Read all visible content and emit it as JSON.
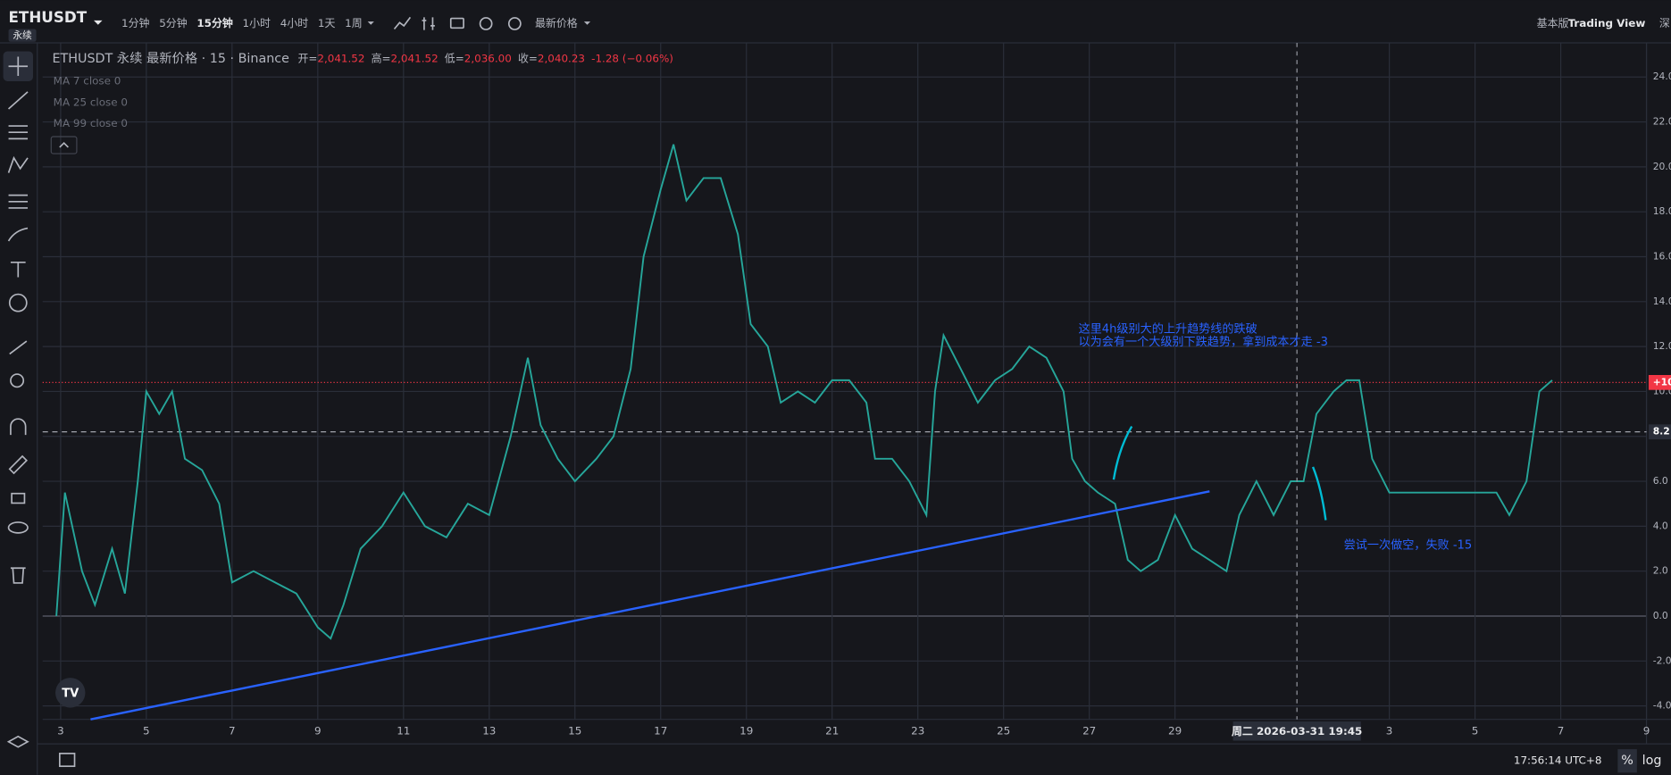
{
  "header": {
    "symbol": "ETHUSDT",
    "contract": "永续",
    "intervals": [
      "1分钟",
      "5分钟",
      "15分钟",
      "1小时",
      "4小时",
      "1天",
      "1周"
    ],
    "price_type": "最新价格",
    "right_links": [
      "基本版",
      "Trading View",
      "深"
    ]
  },
  "legend": {
    "title": "ETHUSDT 永续 最新价格 · 15 · Binance",
    "fields": [
      {
        "label": "开=",
        "value": "2,041.52"
      },
      {
        "label": "高=",
        "value": "2,041.52"
      },
      {
        "label": "低=",
        "value": "2,036.00"
      },
      {
        "label": "收=",
        "value": "2,040.23"
      }
    ],
    "change": "-1.28 (−0.06%)",
    "indicators": [
      "MA 7 close 0",
      "MA 25 close 0",
      "MA 99 close 0"
    ]
  },
  "annotations": {
    "note1_line1": "这里4h级别大的上升趋势线的跌破",
    "note1_line2": "以为会有一个大级别下跌趋势，拿到成本才走 -3",
    "note2": "尝试一次做空，失败 -15"
  },
  "crosshair_label": "周二 2026-03-31   19:45",
  "footer": {
    "time": "17:56:14 UTC+8",
    "percent": "%",
    "log": "log"
  },
  "chart_data": {
    "type": "line",
    "x": [
      2.9,
      3.1,
      3.5,
      3.8,
      4.2,
      4.5,
      4.8,
      5.0,
      5.3,
      5.6,
      5.9,
      6.3,
      6.7,
      7.0,
      7.5,
      8.0,
      8.5,
      9.0,
      9.3,
      9.6,
      10.0,
      10.5,
      11.0,
      11.5,
      12.0,
      12.5,
      13.0,
      13.5,
      13.9,
      14.2,
      14.6,
      15.0,
      15.5,
      15.9,
      16.3,
      16.6,
      17.0,
      17.3,
      17.6,
      18.0,
      18.4,
      18.8,
      19.1,
      19.5,
      19.8,
      20.2,
      20.6,
      21.0,
      21.4,
      21.8,
      22.0,
      22.4,
      22.8,
      23.2,
      23.4,
      23.6,
      24.0,
      24.4,
      24.8,
      25.2,
      25.6,
      26.0,
      26.4,
      26.6,
      26.9,
      27.2,
      27.6,
      27.9,
      28.2,
      28.6,
      29.0,
      29.4,
      29.8,
      30.2,
      30.5,
      30.9,
      31.3,
      31.7,
      32.0,
      32.3,
      32.7,
      33.0,
      33.3,
      33.6,
      34.0,
      34.5,
      35.0,
      35.5,
      36.0,
      36.5,
      36.8,
      37.2,
      37.5,
      37.8
    ],
    "series": [
      {
        "name": "ETHUSDT",
        "color": "#26a69a",
        "values": [
          0,
          5.5,
          2,
          0.5,
          3,
          1,
          6,
          10,
          9,
          10,
          7,
          6.5,
          5,
          1.5,
          2,
          1.5,
          1,
          -0.5,
          -1,
          0.5,
          3,
          4,
          5.5,
          4,
          3.5,
          5,
          4.5,
          8,
          11.5,
          8.5,
          7,
          6,
          7,
          8,
          11,
          16,
          19,
          21,
          18.5,
          19.5,
          19.5,
          17,
          13,
          12,
          9.5,
          10,
          9.5,
          10.5,
          10.5,
          9.5,
          7,
          7,
          6,
          4.5,
          10,
          12.5,
          11,
          9.5,
          10.5,
          11,
          12,
          11.5,
          10,
          7,
          6,
          5.5,
          5,
          2.5,
          2,
          2.5,
          4.5,
          3,
          2.5,
          2,
          4.5,
          6,
          4.5,
          6,
          6,
          9,
          10,
          10.5,
          10.5,
          7,
          5.5,
          5.5,
          5.5,
          5.5,
          5.5,
          5.5,
          4.5,
          6,
          10,
          10.5
        ]
      }
    ],
    "xlim": [
      2.58,
      40
    ],
    "xticks": [
      3,
      5,
      7,
      9,
      11,
      13,
      15,
      17,
      19,
      21,
      23,
      25,
      27,
      29,
      {
        "value": 34,
        "label": "3"
      },
      {
        "value": 36,
        "label": "5"
      },
      {
        "value": 38,
        "label": "7"
      },
      {
        "value": 40,
        "label": "9"
      }
    ],
    "ylim": [
      -4.6,
      25.52
    ],
    "yticks": [
      {
        "value": -4,
        "label": "-4.0"
      },
      {
        "value": -2,
        "label": "-2.0"
      },
      {
        "value": 0,
        "label": "0.0"
      },
      {
        "value": 2,
        "label": "2.0"
      },
      {
        "value": 4,
        "label": "4.0"
      },
      {
        "value": 6,
        "label": "6.0"
      },
      {
        "value": 8,
        "label": "8.0"
      },
      {
        "value": 10,
        "label": "10.0"
      },
      {
        "value": 12,
        "label": "12.0"
      },
      {
        "value": 14,
        "label": "14.0"
      },
      {
        "value": 16,
        "label": "16.0"
      },
      {
        "value": 18,
        "label": "18.0"
      },
      {
        "value": 20,
        "label": "20.0"
      },
      {
        "value": 22,
        "label": "22.0"
      },
      {
        "value": 24,
        "label": "24.0"
      }
    ],
    "hlines": [
      {
        "value": 8.2,
        "label": "8.2",
        "color": "#b2b5be"
      },
      {
        "value": 10.4,
        "label": "+10",
        "color": "#f23645"
      }
    ],
    "grid": true
  }
}
